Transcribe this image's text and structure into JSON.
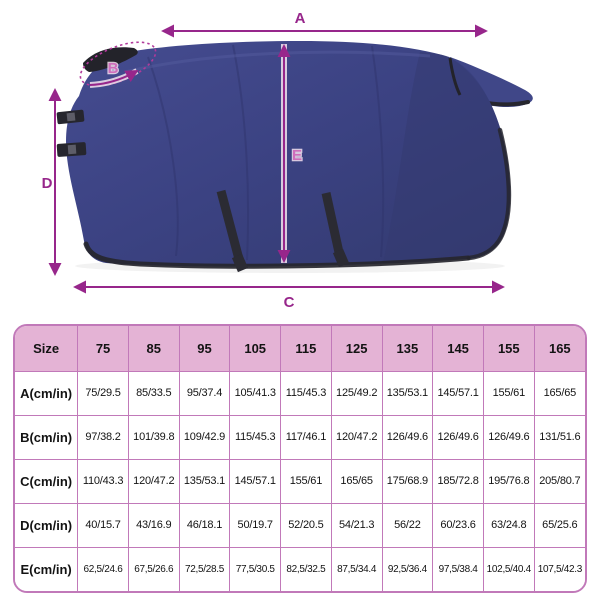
{
  "page": {
    "background": "#ffffff"
  },
  "diagram": {
    "type": "product-measurement-diagram",
    "subject": "horse-blanket-side-view",
    "labels": {
      "a": "A",
      "b": "B",
      "c": "C",
      "d": "D",
      "e": "E"
    },
    "colors": {
      "arrow": "#97268b",
      "blanket": "#3b4282",
      "blanket_shade": "#343a70",
      "binding": "#26262e"
    }
  },
  "size_table": {
    "header": [
      "Size",
      "75",
      "85",
      "95",
      "105",
      "115",
      "125",
      "135",
      "145",
      "155",
      "165"
    ],
    "rows": [
      {
        "label": "A(cm/in)",
        "values": [
          "75/29.5",
          "85/33.5",
          "95/37.4",
          "105/41.3",
          "115/45.3",
          "125/49.2",
          "135/53.1",
          "145/57.1",
          "155/61",
          "165/65"
        ]
      },
      {
        "label": "B(cm/in)",
        "values": [
          "97/38.2",
          "101/39.8",
          "109/42.9",
          "115/45.3",
          "117/46.1",
          "120/47.2",
          "126/49.6",
          "126/49.6",
          "126/49.6",
          "131/51.6"
        ]
      },
      {
        "label": "C(cm/in)",
        "values": [
          "110/43.3",
          "120/47.2",
          "135/53.1",
          "145/57.1",
          "155/61",
          "165/65",
          "175/68.9",
          "185/72.8",
          "195/76.8",
          "205/80.7"
        ]
      },
      {
        "label": "D(cm/in)",
        "values": [
          "40/15.7",
          "43/16.9",
          "46/18.1",
          "50/19.7",
          "52/20.5",
          "54/21.3",
          "56/22",
          "60/23.6",
          "63/24.8",
          "65/25.6"
        ]
      },
      {
        "label": "E(cm/in)",
        "values": [
          "62,5/24.6",
          "67,5/26.6",
          "72,5/28.5",
          "77,5/30.5",
          "82,5/32.5",
          "87,5/34.4",
          "92,5/36.4",
          "97,5/38.4",
          "102,5/40.4",
          "107,5/42.3"
        ]
      }
    ],
    "colors": {
      "header_bg": "#e4b3d5",
      "border": "#c179b9"
    }
  }
}
